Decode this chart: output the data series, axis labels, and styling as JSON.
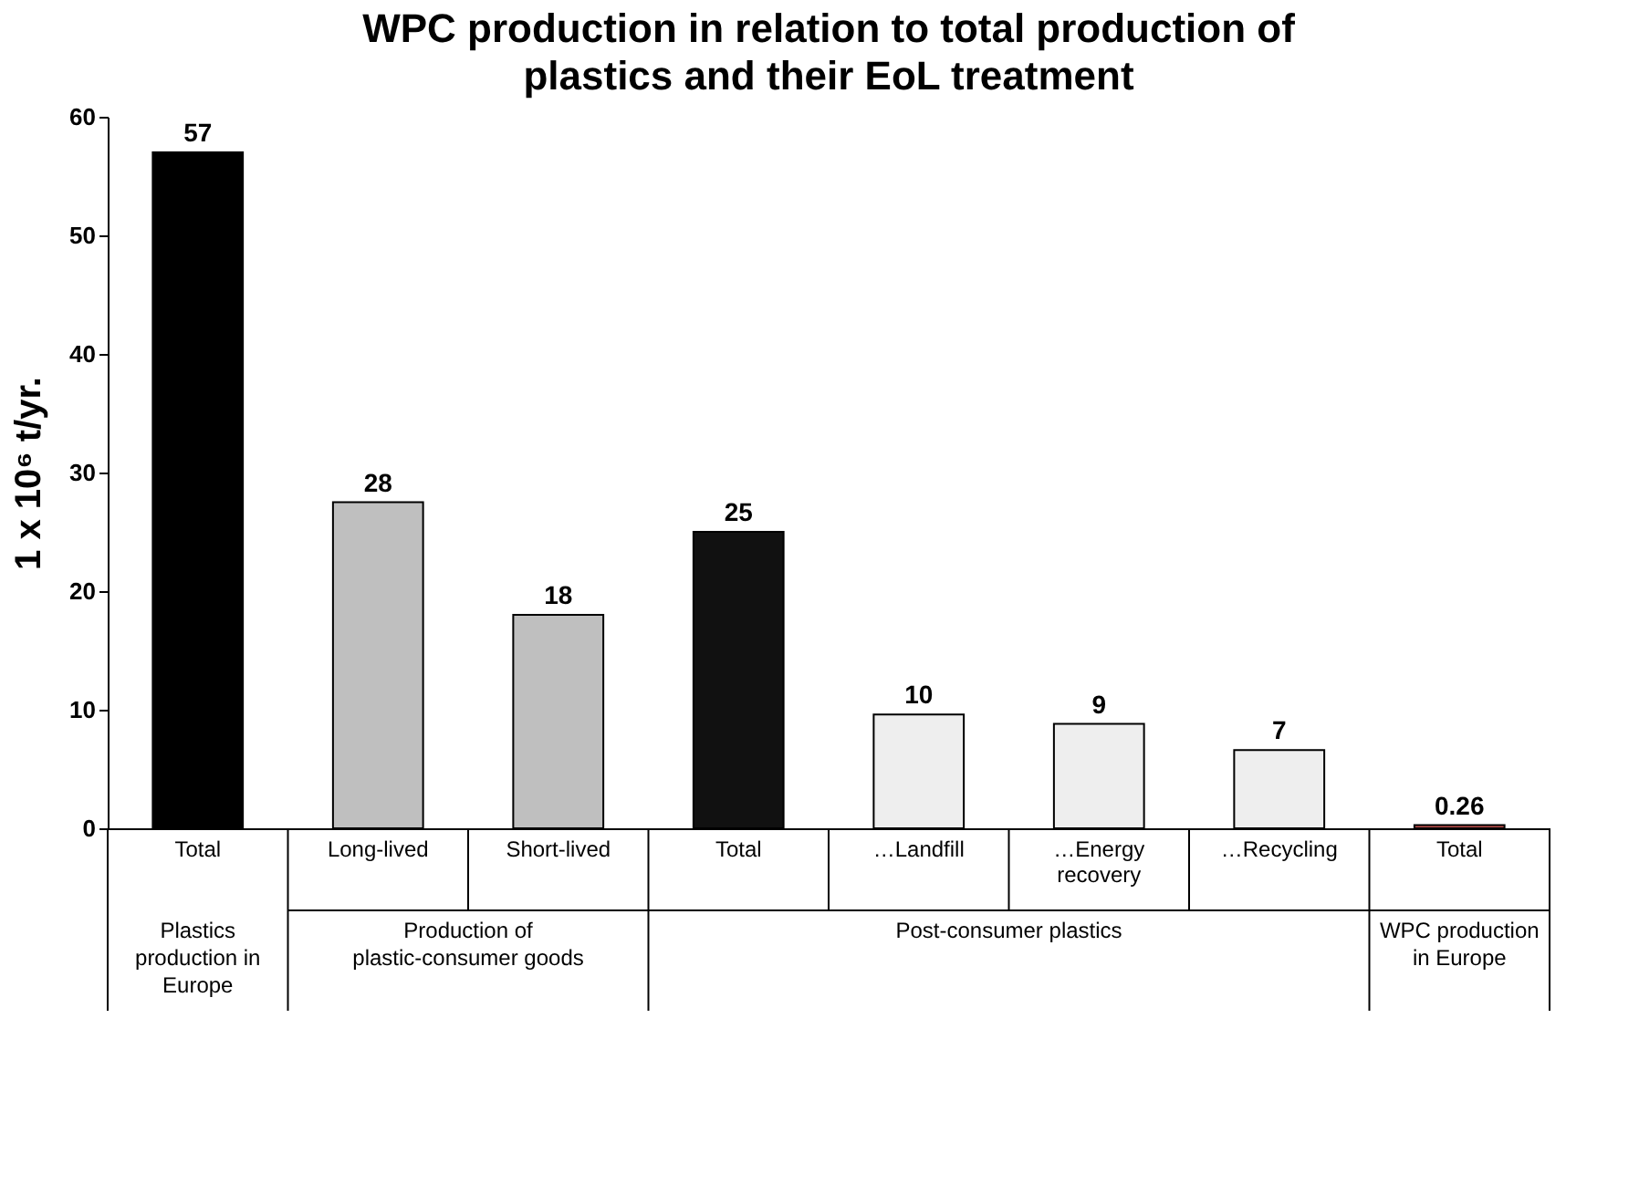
{
  "chart_data": {
    "type": "bar",
    "title": "WPC production in relation to total production of plastics and their EoL treatment",
    "ylabel": "1 x 10⁶ t/yr.",
    "categories": [
      "Total",
      "Long-lived",
      "Short-lived",
      "Total",
      "…Landfill",
      "…Energy recovery",
      "…Recycling",
      "Total"
    ],
    "values": [
      57,
      27.5,
      18,
      25,
      9.6,
      8.8,
      6.6,
      0.26
    ],
    "colors": [
      "#000000",
      "#bfbfbf",
      "#bfbfbf",
      "#111111",
      "#eeeeee",
      "#eeeeee",
      "#eeeeee",
      "#c0504d"
    ],
    "value_labels": [
      "57",
      "28",
      "18",
      "25",
      "10",
      "9",
      "7",
      "0.26"
    ],
    "ylim": [
      0,
      60
    ],
    "yticks": [
      0,
      10,
      20,
      30,
      40,
      50,
      60
    ],
    "grid": false,
    "annotations": [
      "Plastics production in Europe",
      "Production of plastic-consumer goods",
      "Post-consumer plastics",
      "WPC production in Europe"
    ]
  }
}
